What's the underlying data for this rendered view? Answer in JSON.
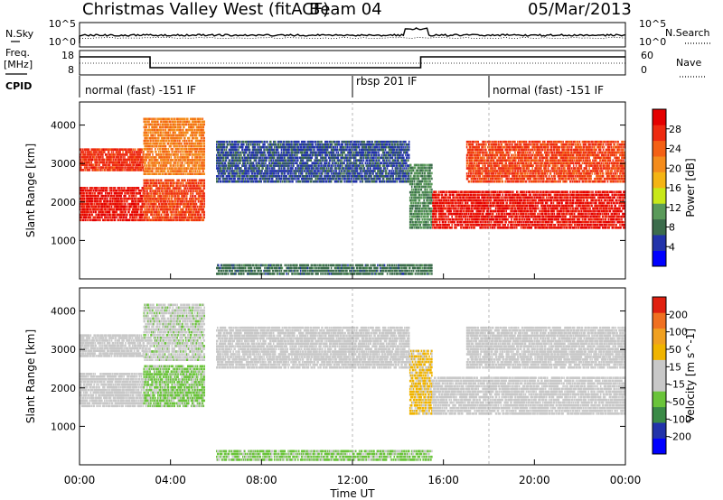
{
  "header": {
    "title": "Christmas Valley West (fitACF)",
    "beam": "Beam 04",
    "date": "05/Mar/2013"
  },
  "side_labels": {
    "nsky": "N.Sky",
    "nsky_ticks": [
      "10^5",
      "10^0"
    ],
    "nsearch": "N.Search",
    "nsearch_ticks": [
      "10^5",
      "10^0"
    ],
    "freq": "Freq.",
    "freq_unit": "[MHz]",
    "freq_ticks": [
      "18",
      "8"
    ],
    "nave": "Nave",
    "nave_ticks": [
      "60",
      "0"
    ],
    "cpid": "CPID"
  },
  "cpid_segments": [
    {
      "label": "normal (fast) -151 IF",
      "start_hour": 0
    },
    {
      "label": "rbsp 201 IF",
      "start_hour": 12
    },
    {
      "label": "normal (fast) -151 IF",
      "start_hour": 18
    }
  ],
  "colors": {
    "power_scale": [
      "#0000ff",
      "#2233aa",
      "#3c6c4c",
      "#5a9a5a",
      "#c8e818",
      "#f4b414",
      "#f48c1c",
      "#f46014",
      "#ee2a10",
      "#e40000"
    ],
    "velocity_scale": [
      "#0000ff",
      "#2233aa",
      "#3a8a46",
      "#6ac43a",
      "#c8c8c8",
      "#c8c8c8",
      "#f0b400",
      "#f0a020",
      "#f07020",
      "#e02010"
    ]
  },
  "chart_data": [
    {
      "type": "heatmap",
      "name_hint": "power",
      "ylabel": "Slant Range [km]",
      "yticks": [
        "1000",
        "2000",
        "3000",
        "4000"
      ],
      "ylim": [
        0,
        4600
      ],
      "xlim": [
        0,
        24
      ],
      "colorbar_label": "Power [dB]",
      "colorbar_ticks": [
        "4",
        "8",
        "12",
        "16",
        "20",
        "24",
        "28"
      ],
      "colorbar_range": [
        0,
        32
      ],
      "echo_bands": [
        {
          "t0": 0.0,
          "t1": 2.8,
          "r0": 1500,
          "r1": 2400,
          "value": 29
        },
        {
          "t0": 0.0,
          "t1": 2.8,
          "r0": 2800,
          "r1": 3400,
          "value": 27
        },
        {
          "t0": 2.8,
          "t1": 5.5,
          "r0": 1500,
          "r1": 2600,
          "value": 26
        },
        {
          "t0": 2.8,
          "t1": 5.5,
          "r0": 2700,
          "r1": 4200,
          "value": 22
        },
        {
          "t0": 6.0,
          "t1": 14.5,
          "r0": 2500,
          "r1": 3600,
          "value": 6
        },
        {
          "t0": 6.0,
          "t1": 15.5,
          "r0": 100,
          "r1": 400,
          "value": 8
        },
        {
          "t0": 14.5,
          "t1": 15.5,
          "r0": 1300,
          "r1": 3000,
          "value": 10
        },
        {
          "t0": 15.5,
          "t1": 24.0,
          "r0": 1300,
          "r1": 2300,
          "value": 29
        },
        {
          "t0": 17.0,
          "t1": 24.0,
          "r0": 2500,
          "r1": 3600,
          "value": 26
        }
      ]
    },
    {
      "type": "heatmap",
      "name_hint": "velocity",
      "ylabel": "Slant Range [km]",
      "yticks": [
        "1000",
        "2000",
        "3000",
        "4000"
      ],
      "ylim": [
        0,
        4600
      ],
      "xlim": [
        0,
        24
      ],
      "xlabel": "Time UT",
      "xticks": [
        "00:00",
        "04:00",
        "08:00",
        "12:00",
        "16:00",
        "20:00",
        "00:00"
      ],
      "colorbar_label": "Velocity [m s^-1]",
      "colorbar_ticks": [
        "200",
        "100",
        "50",
        "15",
        "-15",
        "-50",
        "-100",
        "-200"
      ],
      "colorbar_range": [
        -250,
        250
      ],
      "echo_bands": [
        {
          "t0": 0.0,
          "t1": 2.8,
          "r0": 1500,
          "r1": 2400,
          "value": 0
        },
        {
          "t0": 0.0,
          "t1": 2.8,
          "r0": 2800,
          "r1": 3400,
          "value": 0
        },
        {
          "t0": 2.8,
          "t1": 5.5,
          "r0": 1500,
          "r1": 2600,
          "value": -60
        },
        {
          "t0": 2.8,
          "t1": 5.5,
          "r0": 2700,
          "r1": 4200,
          "value": -30
        },
        {
          "t0": 6.0,
          "t1": 14.5,
          "r0": 2500,
          "r1": 3600,
          "value": 0
        },
        {
          "t0": 6.0,
          "t1": 15.5,
          "r0": 100,
          "r1": 400,
          "value": -60
        },
        {
          "t0": 14.5,
          "t1": 15.5,
          "r0": 1300,
          "r1": 3000,
          "value": 60
        },
        {
          "t0": 15.5,
          "t1": 24.0,
          "r0": 1300,
          "r1": 2300,
          "value": 0
        },
        {
          "t0": 17.0,
          "t1": 24.0,
          "r0": 2500,
          "r1": 3600,
          "value": 0
        }
      ]
    }
  ]
}
